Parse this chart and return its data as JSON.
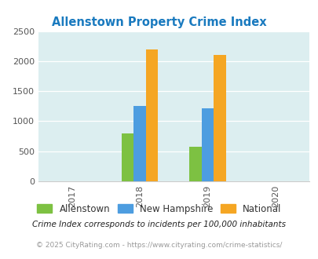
{
  "title": "Allenstown Property Crime Index",
  "years": [
    2017,
    2018,
    2019,
    2020
  ],
  "bar_years": [
    2018,
    2019
  ],
  "allenstown": [
    800,
    580
  ],
  "new_hampshire": [
    1250,
    1210
  ],
  "national": [
    2200,
    2100
  ],
  "colors": {
    "allenstown": "#7dc142",
    "new_hampshire": "#4d9de0",
    "national": "#f5a623"
  },
  "ylim": [
    0,
    2500
  ],
  "yticks": [
    0,
    500,
    1000,
    1500,
    2000,
    2500
  ],
  "title_color": "#1a7abf",
  "bg_color": "#dceef0",
  "footnote1": "Crime Index corresponds to incidents per 100,000 inhabitants",
  "footnote2": "© 2025 CityRating.com - https://www.cityrating.com/crime-statistics/",
  "legend_labels": [
    "Allenstown",
    "New Hampshire",
    "National"
  ],
  "bar_width": 0.18
}
